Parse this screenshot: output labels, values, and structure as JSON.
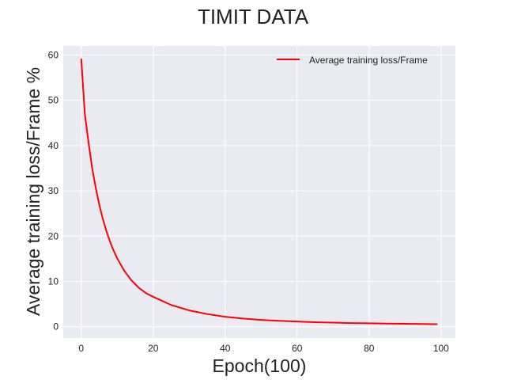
{
  "chart_data": {
    "type": "line",
    "title": "TIMIT DATA",
    "xlabel": "Epoch(100)",
    "ylabel": "Average training loss/Frame %",
    "xlim": [
      -5,
      104
    ],
    "ylim": [
      -2.5,
      62
    ],
    "xticks": [
      0,
      20,
      40,
      60,
      80,
      100
    ],
    "yticks": [
      0,
      10,
      20,
      30,
      40,
      50,
      60
    ],
    "grid": true,
    "legend_position": "top-right",
    "series": [
      {
        "name": "Average training loss/Frame",
        "color": "#ff0000",
        "x": [
          0,
          1,
          2,
          3,
          4,
          5,
          6,
          7,
          8,
          9,
          10,
          12,
          14,
          16,
          18,
          20,
          25,
          30,
          35,
          40,
          45,
          50,
          55,
          60,
          65,
          70,
          75,
          80,
          85,
          90,
          95,
          99
        ],
        "y": [
          59.2,
          47.0,
          40.8,
          35.2,
          30.8,
          27.0,
          23.8,
          21.1,
          18.8,
          16.8,
          15.1,
          12.3,
          10.2,
          8.6,
          7.4,
          6.6,
          4.8,
          3.6,
          2.8,
          2.2,
          1.8,
          1.5,
          1.3,
          1.15,
          1.0,
          0.9,
          0.8,
          0.75,
          0.7,
          0.65,
          0.6,
          0.55
        ]
      }
    ]
  },
  "colors": {
    "plot_background": "#eaeaf2",
    "grid": "#ffffff",
    "text": "#222222"
  }
}
